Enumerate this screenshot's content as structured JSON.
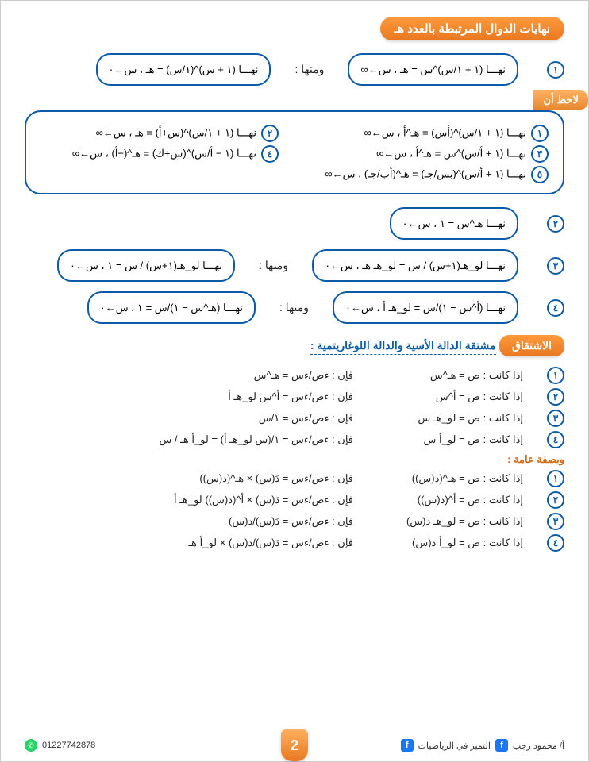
{
  "header": {
    "title": "نهايات الدوال المرتبطة بالعدد هـ"
  },
  "row1": {
    "num": "١",
    "box1": "نهـــا (١ + ١/س)^س = هـ  ،  س←∞",
    "between": "ومنها :",
    "box2": "نهـــا (١ + س)^(١/س) = هـ  ،  س←٠"
  },
  "note_label": "لاحظ أن",
  "note_box": {
    "r1c1_num": "١",
    "r1c1": "نهـــا (١ + ١/س)^(أس) = هـ^أ  ،  س←∞",
    "r1c2_num": "٢",
    "r1c2": "نهـــا (١ + ١/س)^(س+أ) = هـ  ،  س←∞",
    "r2c1_num": "٣",
    "r2c1": "نهـــا (١ + أ/س)^س = هـ^أ  ،  س←∞",
    "r2c2_num": "٤",
    "r2c2": "نهـــا (١ − أ/س)^(س+ك) = هـ^(−أ)  ،  س←∞",
    "r3_num": "٥",
    "r3": "نهـــا (١ + أ/س)^(بس/جـ) = هـ^(أب/جـ)  ،  س←∞"
  },
  "row2": {
    "num": "٢",
    "text": "نهـــا هـ^س = ١  ،  س←٠"
  },
  "row3": {
    "num": "٣",
    "box1": "نهـــا لو_هـ(١+س) / س = لو_هـ هـ  ،  س←٠",
    "between": "ومنها :",
    "box2": "نهـــا لو_هـ(١+س) / س = ١  ،  س←٠"
  },
  "row4": {
    "num": "٤",
    "box1": "نهـــا (أ^س − ١)/س = لو_هـ أ  ،  س←٠",
    "between": "ومنها :",
    "box2": "نهـــا (هـ^س − ١)/س = ١  ،  س←٠"
  },
  "derivation": {
    "title": "الاشتقاق",
    "sub": "مشتقة الدالة الأسية والدالة اللوغاريتمية :",
    "lines": [
      {
        "num": "١",
        "l": "إذا كانت : ص = هـ^س",
        "r": "فإن : ءص/ءس = هـ^س"
      },
      {
        "num": "٢",
        "l": "إذا كانت : ص = أ^س",
        "r": "فإن : ءص/ءس = أ^س لو_هـ أ"
      },
      {
        "num": "٣",
        "l": "إذا كانت : ص = لو_هـ س",
        "r": "فإن : ءص/ءس = ١/س"
      },
      {
        "num": "٤",
        "l": "إذا كانت : ص = لو_أ س",
        "r": "فإن : ءص/ءس = ١/(س لو_هـ أ) = لو_أ هـ / س"
      }
    ],
    "general_sub": "وبصفة عامة :",
    "general": [
      {
        "num": "١",
        "l": "إذا كانت : ص = هـ^(د(س))",
        "r": "فإن : ءص/ءس = دَ(س) × هـ^(د(س))"
      },
      {
        "num": "٢",
        "l": "إذا كانت : ص = أ^(د(س))",
        "r": "فإن : ءص/ءس = دَ(س) × أ^(د(س)) لو_هـ أ"
      },
      {
        "num": "٣",
        "l": "إذا كانت : ص = لو_هـ د(س)",
        "r": "فإن : ءص/ءس = دَ(س)/د(س)"
      },
      {
        "num": "٤",
        "l": "إذا كانت : ص = لو_أ د(س)",
        "r": "فإن : ءص/ءس = دَ(س)/د(س) × لو_أ هـ"
      }
    ]
  },
  "footer": {
    "page": "2",
    "right1": "أ/ محمود رجب",
    "right2": "التميز في الرياضيات",
    "phone": "01227742878"
  }
}
